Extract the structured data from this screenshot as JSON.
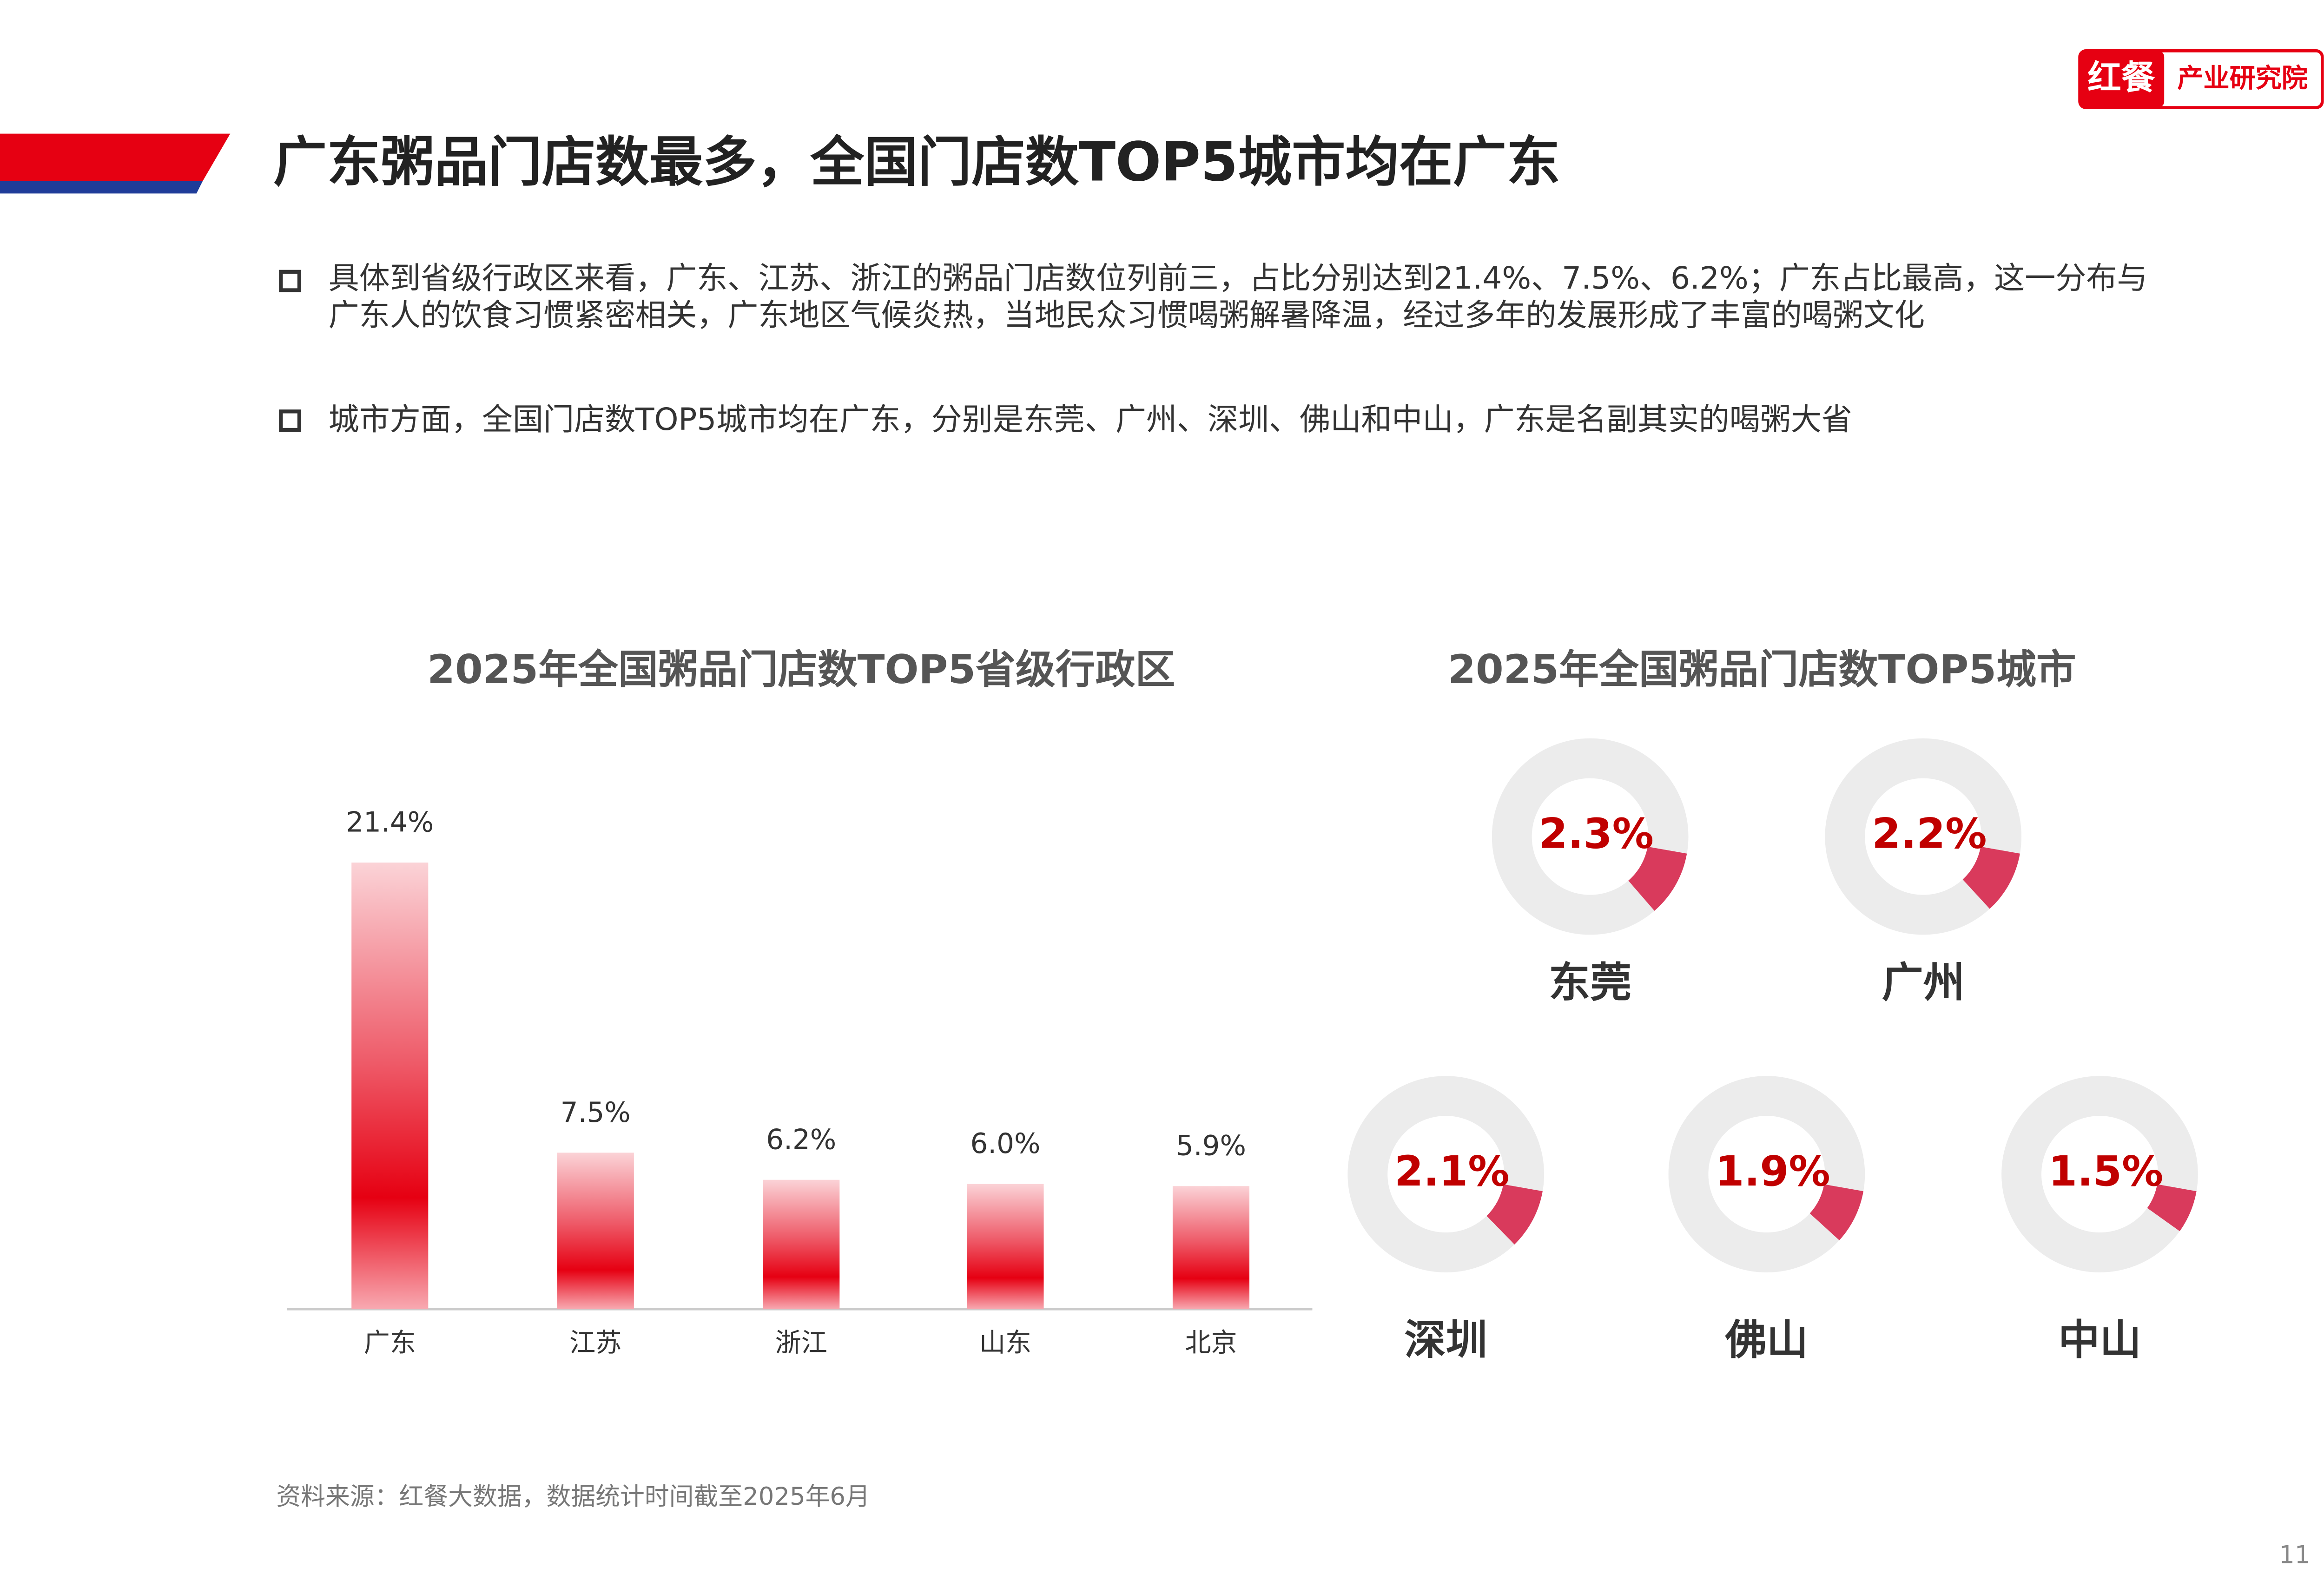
{
  "header": {
    "title": "广东粥品门店数最多，全国门店数TOP5城市均在广东",
    "logo": [
      "红餐",
      "产业研究院"
    ]
  },
  "bullets": [
    "具体到省级行政区来看，广东、江苏、浙江的粥品门店数位列前三，占比分别达到21.4%、7.5%、6.2%；广东占比最高，这一分布与广东人的饮食习惯紧密相关，广东地区气候炎热，当地民众习惯喝粥解暑降温，经过多年的发展形成了丰富的喝粥文化",
    "城市方面，全国门店数TOP5城市均在广东，分别是东莞、广州、深圳、佛山和中山，广东是名副其实的喝粥大省"
  ],
  "chart_data": [
    {
      "type": "bar",
      "title": "2025年全国粥品门店数TOP5省级行政区",
      "categories": [
        "广东",
        "江苏",
        "浙江",
        "山东",
        "北京"
      ],
      "values": [
        21.4,
        7.5,
        6.2,
        6.0,
        5.9
      ],
      "value_labels": [
        "21.4%",
        "7.5%",
        "6.2%",
        "6.0%",
        "5.9%"
      ],
      "color": "#e60012"
    },
    {
      "type": "donut",
      "title": "2025年全国粥品门店数TOP5城市",
      "categories": [
        "东莞",
        "广州",
        "深圳",
        "佛山",
        "中山"
      ],
      "values": [
        2.3,
        2.2,
        2.1,
        1.9,
        1.5
      ],
      "value_labels": [
        "2.3%",
        "2.2%",
        "2.1%",
        "1.9%",
        "1.5%"
      ],
      "color": "#d93a5c"
    }
  ],
  "source": "资料来源：红餐大数据，数据统计时间截至2025年6月",
  "page_number": "11"
}
